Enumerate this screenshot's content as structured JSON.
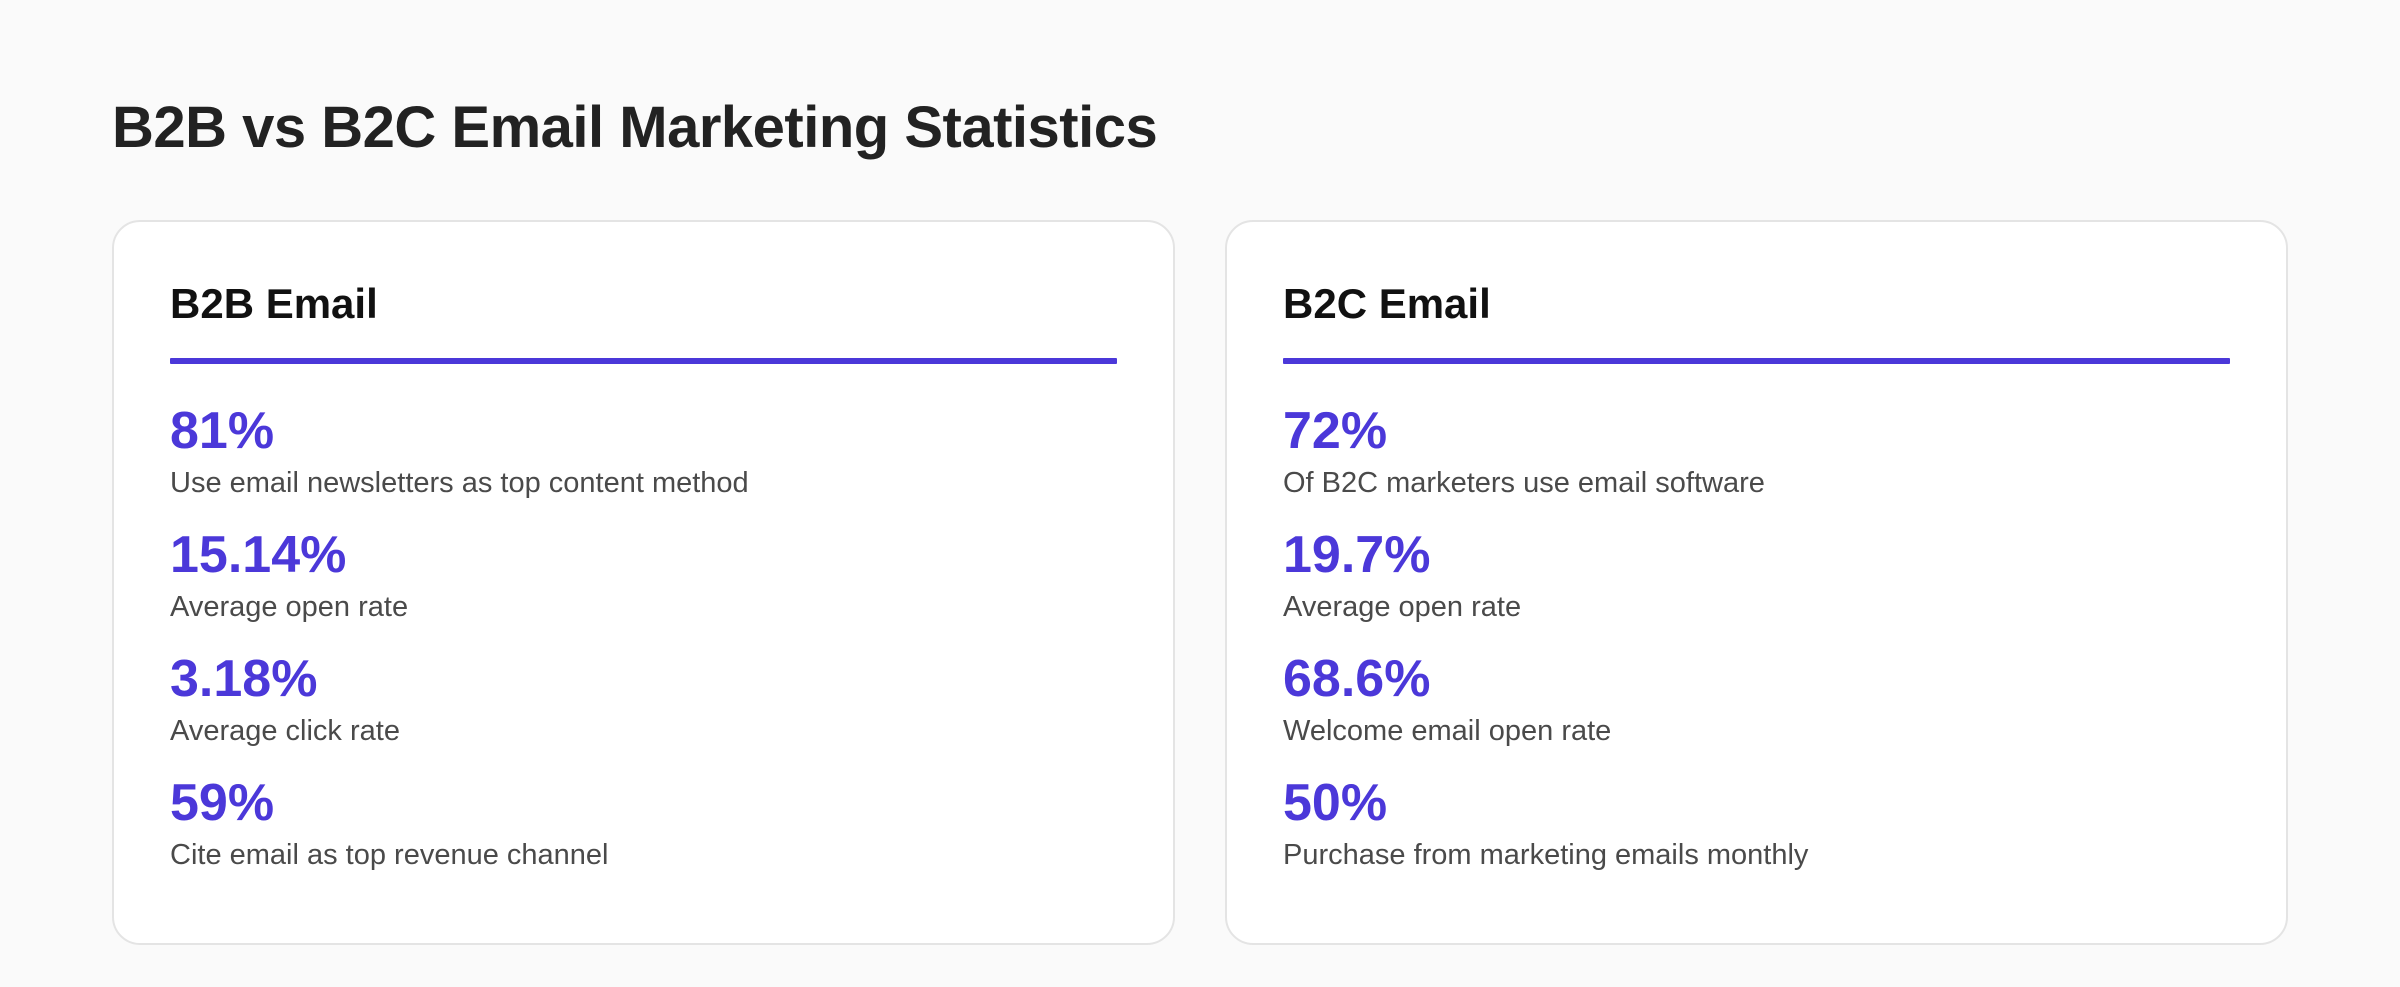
{
  "page": {
    "title": "B2B vs B2C Email Marketing Statistics"
  },
  "theme": {
    "accent": "#4b38d9",
    "background": "#fafafa",
    "card_background": "#ffffff",
    "title_color": "#222222",
    "label_color": "#4a4a4a"
  },
  "cards": [
    {
      "title": "B2B Email",
      "stats": [
        {
          "value": "81%",
          "label": "Use email newsletters as top content method"
        },
        {
          "value": "15.14%",
          "label": "Average open rate"
        },
        {
          "value": "3.18%",
          "label": "Average click rate"
        },
        {
          "value": "59%",
          "label": "Cite email as top revenue channel"
        }
      ]
    },
    {
      "title": "B2C Email",
      "stats": [
        {
          "value": "72%",
          "label": "Of B2C marketers use email software"
        },
        {
          "value": "19.7%",
          "label": "Average open rate"
        },
        {
          "value": "68.6%",
          "label": "Welcome email open rate"
        },
        {
          "value": "50%",
          "label": "Purchase from marketing emails monthly"
        }
      ]
    }
  ]
}
